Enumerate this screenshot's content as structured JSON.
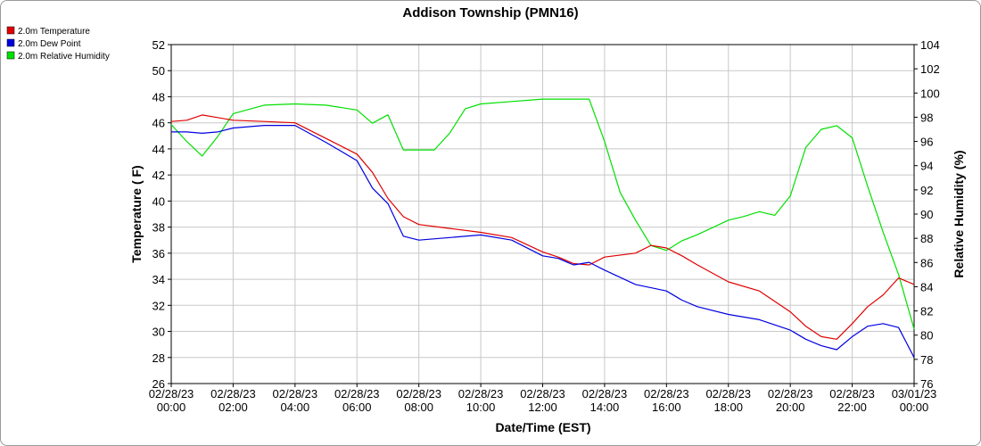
{
  "chart_data": {
    "type": "line",
    "title": "Addison Township (PMN16)",
    "xlabel": "Date/Time (EST)",
    "ylabel": "Temperature ( F)",
    "y2label": "Relative Humidity (%)",
    "ylim": [
      26,
      52
    ],
    "y2lim": [
      76,
      104
    ],
    "xlim": [
      "02/28/23 00:00",
      "03/01/23 00:00"
    ],
    "grid": true,
    "legend_position": "top-left",
    "yticks": [
      "26",
      "28",
      "30",
      "32",
      "34",
      "36",
      "38",
      "40",
      "42",
      "44",
      "46",
      "48",
      "50",
      "52"
    ],
    "y2ticks": [
      "76",
      "78",
      "80",
      "82",
      "84",
      "86",
      "88",
      "90",
      "92",
      "94",
      "96",
      "98",
      "100",
      "102",
      "104"
    ],
    "xticks": [
      {
        "date": "02/28/23",
        "time": "00:00"
      },
      {
        "date": "02/28/23",
        "time": "02:00"
      },
      {
        "date": "02/28/23",
        "time": "04:00"
      },
      {
        "date": "02/28/23",
        "time": "06:00"
      },
      {
        "date": "02/28/23",
        "time": "08:00"
      },
      {
        "date": "02/28/23",
        "time": "10:00"
      },
      {
        "date": "02/28/23",
        "time": "12:00"
      },
      {
        "date": "02/28/23",
        "time": "14:00"
      },
      {
        "date": "02/28/23",
        "time": "16:00"
      },
      {
        "date": "02/28/23",
        "time": "18:00"
      },
      {
        "date": "02/28/23",
        "time": "20:00"
      },
      {
        "date": "02/28/23",
        "time": "22:00"
      },
      {
        "date": "03/01/23",
        "time": "00:00"
      }
    ],
    "series": [
      {
        "name": "2.0m Temperature",
        "color": "#e00000",
        "axis": "left",
        "x": [
          "02/28/23 00:00",
          "02/28/23 00:30",
          "02/28/23 01:00",
          "02/28/23 01:30",
          "02/28/23 02:00",
          "02/28/23 03:00",
          "02/28/23 04:00",
          "02/28/23 05:00",
          "02/28/23 06:00",
          "02/28/23 06:30",
          "02/28/23 07:00",
          "02/28/23 07:30",
          "02/28/23 08:00",
          "02/28/23 09:00",
          "02/28/23 10:00",
          "02/28/23 11:00",
          "02/28/23 12:00",
          "02/28/23 12:30",
          "02/28/23 13:00",
          "02/28/23 13:30",
          "02/28/23 14:00",
          "02/28/23 15:00",
          "02/28/23 15:30",
          "02/28/23 16:00",
          "02/28/23 16:30",
          "02/28/23 17:00",
          "02/28/23 18:00",
          "02/28/23 19:00",
          "02/28/23 20:00",
          "02/28/23 20:30",
          "02/28/23 21:00",
          "02/28/23 21:30",
          "02/28/23 22:00",
          "02/28/23 22:30",
          "02/28/23 23:00",
          "02/28/23 23:30",
          "03/01/23 00:00"
        ],
        "y": [
          46.1,
          46.2,
          46.6,
          46.4,
          46.2,
          46.1,
          46.0,
          44.8,
          43.6,
          42.2,
          40.2,
          38.8,
          38.2,
          37.9,
          37.6,
          37.2,
          36.1,
          35.7,
          35.2,
          35.1,
          35.7,
          36.0,
          36.6,
          36.4,
          35.8,
          35.1,
          33.8,
          33.1,
          31.5,
          30.4,
          29.6,
          29.4,
          30.6,
          31.9,
          32.8,
          34.1,
          33.6
        ]
      },
      {
        "name": "2.0m Dew Point",
        "color": "#0000e0",
        "axis": "left",
        "x": [
          "02/28/23 00:00",
          "02/28/23 00:30",
          "02/28/23 01:00",
          "02/28/23 01:30",
          "02/28/23 02:00",
          "02/28/23 03:00",
          "02/28/23 04:00",
          "02/28/23 05:00",
          "02/28/23 06:00",
          "02/28/23 06:30",
          "02/28/23 07:00",
          "02/28/23 07:30",
          "02/28/23 08:00",
          "02/28/23 09:00",
          "02/28/23 10:00",
          "02/28/23 11:00",
          "02/28/23 12:00",
          "02/28/23 12:30",
          "02/28/23 13:00",
          "02/28/23 13:30",
          "02/28/23 14:00",
          "02/28/23 15:00",
          "02/28/23 16:00",
          "02/28/23 16:30",
          "02/28/23 17:00",
          "02/28/23 18:00",
          "02/28/23 19:00",
          "02/28/23 20:00",
          "02/28/23 20:30",
          "02/28/23 21:00",
          "02/28/23 21:30",
          "02/28/23 22:00",
          "02/28/23 22:30",
          "02/28/23 23:00",
          "02/28/23 23:30",
          "03/01/23 00:00"
        ],
        "y": [
          45.3,
          45.3,
          45.2,
          45.3,
          45.6,
          45.8,
          45.8,
          44.5,
          43.1,
          41.0,
          39.8,
          37.3,
          37.0,
          37.2,
          37.4,
          37.0,
          35.8,
          35.6,
          35.1,
          35.3,
          34.7,
          33.6,
          33.1,
          32.4,
          31.9,
          31.3,
          30.9,
          30.1,
          29.4,
          28.9,
          28.6,
          29.6,
          30.4,
          30.6,
          30.3,
          28.0
        ]
      },
      {
        "name": "2.0m Relative Humidity",
        "color": "#00e000",
        "axis": "right",
        "x": [
          "02/28/23 00:00",
          "02/28/23 00:30",
          "02/28/23 01:00",
          "02/28/23 01:30",
          "02/28/23 02:00",
          "02/28/23 03:00",
          "02/28/23 04:00",
          "02/28/23 05:00",
          "02/28/23 06:00",
          "02/28/23 06:30",
          "02/28/23 07:00",
          "02/28/23 07:30",
          "02/28/23 08:00",
          "02/28/23 08:30",
          "02/28/23 09:00",
          "02/28/23 09:30",
          "02/28/23 10:00",
          "02/28/23 11:00",
          "02/28/23 12:00",
          "02/28/23 13:00",
          "02/28/23 13:30",
          "02/28/23 14:00",
          "02/28/23 14:30",
          "02/28/23 15:00",
          "02/28/23 15:30",
          "02/28/23 16:00",
          "02/28/23 16:30",
          "02/28/23 17:00",
          "02/28/23 18:00",
          "02/28/23 18:30",
          "02/28/23 19:00",
          "02/28/23 19:30",
          "02/28/23 20:00",
          "02/28/23 20:30",
          "02/28/23 21:00",
          "02/28/23 21:30",
          "02/28/23 22:00",
          "02/28/23 22:30",
          "02/28/23 23:00",
          "02/28/23 23:30",
          "03/01/23 00:00"
        ],
        "y": [
          97.4,
          96.0,
          94.8,
          96.4,
          98.3,
          99.0,
          99.1,
          99.0,
          98.6,
          97.5,
          98.2,
          95.3,
          95.3,
          95.3,
          96.7,
          98.7,
          99.1,
          99.3,
          99.5,
          99.5,
          99.5,
          96.0,
          91.8,
          89.5,
          87.4,
          87.0,
          87.8,
          88.3,
          89.5,
          89.8,
          90.2,
          89.9,
          91.5,
          95.5,
          97.0,
          97.3,
          96.3,
          92.3,
          88.5,
          85.0,
          80.5
        ]
      }
    ]
  }
}
